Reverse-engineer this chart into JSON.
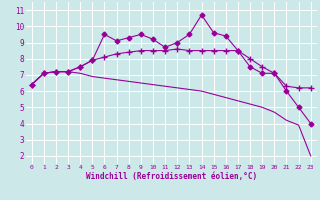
{
  "xlabel": "Windchill (Refroidissement éolien,°C)",
  "x": [
    0,
    1,
    2,
    3,
    4,
    5,
    6,
    7,
    8,
    9,
    10,
    11,
    12,
    13,
    14,
    15,
    16,
    17,
    18,
    19,
    20,
    21,
    22,
    23
  ],
  "line1": [
    6.4,
    7.1,
    7.2,
    7.2,
    7.5,
    7.9,
    9.5,
    9.1,
    9.3,
    9.5,
    9.2,
    8.7,
    9.0,
    9.5,
    10.7,
    9.6,
    9.4,
    8.5,
    7.5,
    7.1,
    7.1,
    6.0,
    5.0,
    4.0
  ],
  "line2": [
    6.4,
    7.1,
    7.2,
    7.2,
    7.5,
    7.9,
    8.1,
    8.3,
    8.4,
    8.5,
    8.5,
    8.5,
    8.6,
    8.5,
    8.5,
    8.5,
    8.5,
    8.5,
    8.0,
    7.5,
    7.1,
    6.3,
    6.2,
    6.2
  ],
  "line3": [
    6.4,
    7.1,
    7.2,
    7.2,
    7.1,
    6.9,
    6.8,
    6.7,
    6.6,
    6.5,
    6.4,
    6.3,
    6.2,
    6.1,
    6.0,
    5.8,
    5.6,
    5.4,
    5.2,
    5.0,
    4.7,
    4.2,
    3.9,
    2.0
  ],
  "line_color": "#990099",
  "ylim": [
    1.5,
    11.5
  ],
  "xlim": [
    -0.5,
    23.5
  ],
  "yticks": [
    2,
    3,
    4,
    5,
    6,
    7,
    8,
    9,
    10,
    11
  ],
  "xticks": [
    0,
    1,
    2,
    3,
    4,
    5,
    6,
    7,
    8,
    9,
    10,
    11,
    12,
    13,
    14,
    15,
    16,
    17,
    18,
    19,
    20,
    21,
    22,
    23
  ],
  "bg_color": "#cce8e8",
  "grid_color": "#ffffff",
  "tick_color": "#990099",
  "xlabel_color": "#990099",
  "marker_size": 2.5,
  "line_width": 0.8
}
